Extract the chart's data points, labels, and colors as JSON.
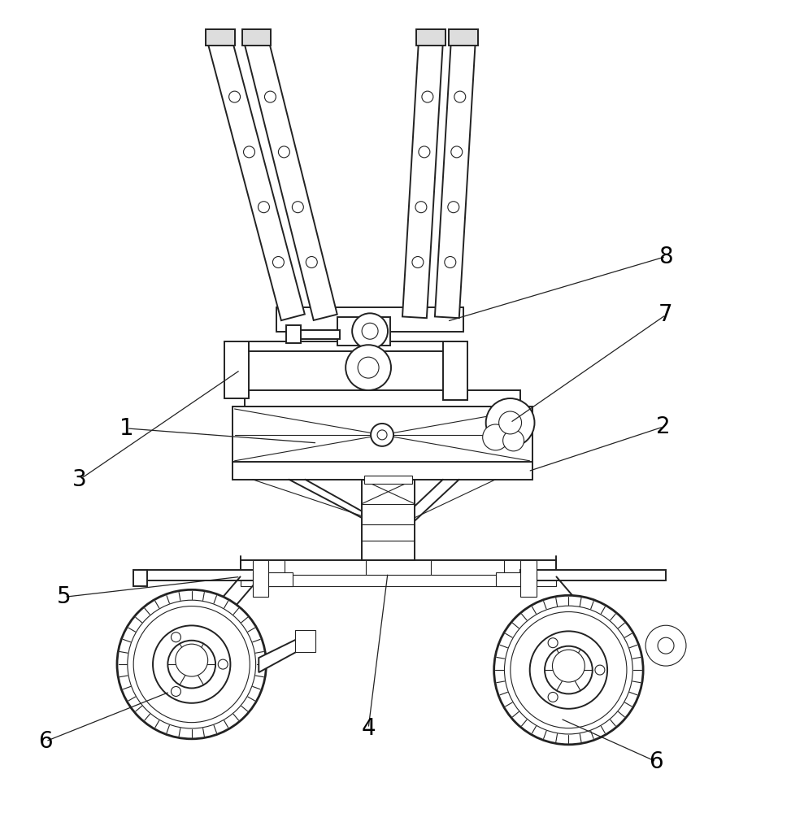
{
  "bg_color": "#ffffff",
  "line_color": "#222222",
  "lw": 1.4,
  "tlw": 0.8,
  "label_fontsize": 20,
  "figsize": [
    9.73,
    10.0
  ],
  "dpi": 100
}
